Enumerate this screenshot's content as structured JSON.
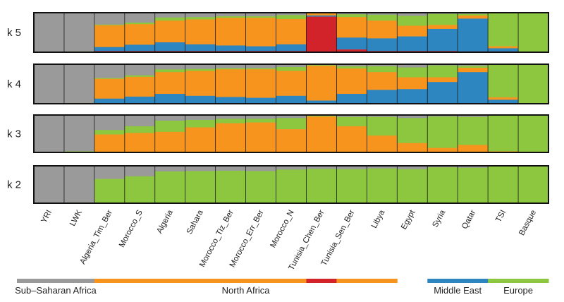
{
  "chart_data": {
    "type": "admixture-bar",
    "colors": {
      "gray": "#9a9a9a",
      "green": "#8dc63f",
      "orange": "#f7941d",
      "blue": "#2e86c1",
      "red": "#d2232a"
    },
    "components": {
      "k2": [
        "gray",
        "green"
      ],
      "k3": [
        "gray",
        "green",
        "orange"
      ],
      "k4": [
        "gray",
        "green",
        "orange",
        "blue"
      ],
      "k5": [
        "gray",
        "green",
        "orange",
        "blue",
        "red"
      ]
    },
    "k_labels": [
      "k 5",
      "k 4",
      "k 3",
      "k 2"
    ],
    "populations": [
      {
        "name": "YRI",
        "k2": [
          1.0,
          0.0
        ],
        "k3": [
          1.0,
          0.0,
          0.0
        ],
        "k4": [
          1.0,
          0.0,
          0.0,
          0.0
        ],
        "k5": [
          1.0,
          0.0,
          0.0,
          0.0,
          0.0
        ]
      },
      {
        "name": "LWK",
        "k2": [
          0.98,
          0.02
        ],
        "k3": [
          0.97,
          0.03,
          0.0
        ],
        "k4": [
          0.98,
          0.02,
          0.0,
          0.0
        ],
        "k5": [
          0.98,
          0.02,
          0.0,
          0.0,
          0.0
        ]
      },
      {
        "name": "Algeria_Tim_Ber",
        "k2": [
          0.35,
          0.65
        ],
        "k3": [
          0.4,
          0.12,
          0.48
        ],
        "k4": [
          0.35,
          0.02,
          0.5,
          0.13
        ],
        "k5": [
          0.3,
          0.02,
          0.55,
          0.1,
          0.03
        ]
      },
      {
        "name": "Morocco_S",
        "k2": [
          0.28,
          0.72
        ],
        "k3": [
          0.3,
          0.18,
          0.52
        ],
        "k4": [
          0.28,
          0.04,
          0.5,
          0.18
        ],
        "k5": [
          0.25,
          0.04,
          0.52,
          0.16,
          0.03
        ]
      },
      {
        "name": "Algeria",
        "k2": [
          0.15,
          0.85
        ],
        "k3": [
          0.15,
          0.3,
          0.55
        ],
        "k4": [
          0.13,
          0.07,
          0.55,
          0.25
        ],
        "k5": [
          0.12,
          0.08,
          0.55,
          0.22,
          0.03
        ]
      },
      {
        "name": "Sahara",
        "k2": [
          0.14,
          0.86
        ],
        "k3": [
          0.13,
          0.2,
          0.67
        ],
        "k4": [
          0.12,
          0.05,
          0.63,
          0.2
        ],
        "k5": [
          0.11,
          0.06,
          0.63,
          0.17,
          0.03
        ]
      },
      {
        "name": "Morocco_Tiz_Ber",
        "k2": [
          0.13,
          0.87
        ],
        "k3": [
          0.1,
          0.12,
          0.78
        ],
        "k4": [
          0.1,
          0.03,
          0.7,
          0.17
        ],
        "k5": [
          0.09,
          0.04,
          0.7,
          0.14,
          0.03
        ]
      },
      {
        "name": "Morocco_Err_Ber",
        "k2": [
          0.14,
          0.86
        ],
        "k3": [
          0.1,
          0.1,
          0.8
        ],
        "k4": [
          0.1,
          0.03,
          0.72,
          0.15
        ],
        "k5": [
          0.09,
          0.04,
          0.72,
          0.12,
          0.03
        ]
      },
      {
        "name": "Morocco_N",
        "k2": [
          0.1,
          0.9
        ],
        "k3": [
          0.08,
          0.3,
          0.62
        ],
        "k4": [
          0.07,
          0.1,
          0.63,
          0.2
        ],
        "k5": [
          0.06,
          0.1,
          0.64,
          0.17,
          0.03
        ]
      },
      {
        "name": "Tunisia_Chen_Ber",
        "k2": [
          0.08,
          0.92
        ],
        "k3": [
          0.02,
          0.02,
          0.96
        ],
        "k4": [
          0.02,
          0.02,
          0.88,
          0.08
        ],
        "k5": [
          0.01,
          0.01,
          0.05,
          0.03,
          0.9
        ]
      },
      {
        "name": "Tunisia_Sen_Ber",
        "k2": [
          0.09,
          0.91
        ],
        "k3": [
          0.05,
          0.25,
          0.7
        ],
        "k4": [
          0.05,
          0.06,
          0.64,
          0.25
        ],
        "k5": [
          0.04,
          0.07,
          0.52,
          0.3,
          0.07
        ]
      },
      {
        "name": "Libya",
        "k2": [
          0.07,
          0.93
        ],
        "k3": [
          0.05,
          0.5,
          0.45
        ],
        "k4": [
          0.05,
          0.15,
          0.45,
          0.35
        ],
        "k5": [
          0.05,
          0.15,
          0.45,
          0.32,
          0.03
        ]
      },
      {
        "name": "Egypt",
        "k2": [
          0.09,
          0.91
        ],
        "k3": [
          0.08,
          0.67,
          0.25
        ],
        "k4": [
          0.08,
          0.25,
          0.3,
          0.37
        ],
        "k5": [
          0.08,
          0.25,
          0.27,
          0.37,
          0.03
        ]
      },
      {
        "name": "Syria",
        "k2": [
          0.04,
          0.96
        ],
        "k3": [
          0.04,
          0.84,
          0.12
        ],
        "k4": [
          0.03,
          0.3,
          0.12,
          0.55
        ],
        "k5": [
          0.03,
          0.28,
          0.1,
          0.56,
          0.03
        ]
      },
      {
        "name": "Qatar",
        "k2": [
          0.05,
          0.95
        ],
        "k3": [
          0.05,
          0.75,
          0.2
        ],
        "k4": [
          0.04,
          0.05,
          0.11,
          0.8
        ],
        "k5": [
          0.03,
          0.04,
          0.08,
          0.83,
          0.02
        ]
      },
      {
        "name": "TSI",
        "k2": [
          0.01,
          0.99
        ],
        "k3": [
          0.01,
          0.96,
          0.03
        ],
        "k4": [
          0.01,
          0.83,
          0.06,
          0.1
        ],
        "k5": [
          0.01,
          0.84,
          0.05,
          0.08,
          0.02
        ]
      },
      {
        "name": "Basque",
        "k2": [
          0.0,
          1.0
        ],
        "k3": [
          0.0,
          1.0,
          0.0
        ],
        "k4": [
          0.0,
          1.0,
          0.0,
          0.0
        ],
        "k5": [
          0.0,
          1.0,
          0.0,
          0.0,
          0.0
        ]
      }
    ],
    "regions": [
      {
        "name": "Sub–Saharan Africa",
        "color": "gray",
        "from": "YRI",
        "to": "LWK"
      },
      {
        "name": "North Africa",
        "color": "orange",
        "from": "Algeria_Tim_Ber",
        "to": "Libya"
      },
      {
        "name": "Middle East",
        "color": "blue",
        "from": "Syria",
        "to": "Qatar"
      },
      {
        "name": "Europe",
        "color": "green",
        "from": "TSI",
        "to": "Basque"
      }
    ],
    "highlight_population": "Tunisia_Chen_Ber",
    "highlight_color": "red",
    "legend": "none",
    "grid": false
  }
}
